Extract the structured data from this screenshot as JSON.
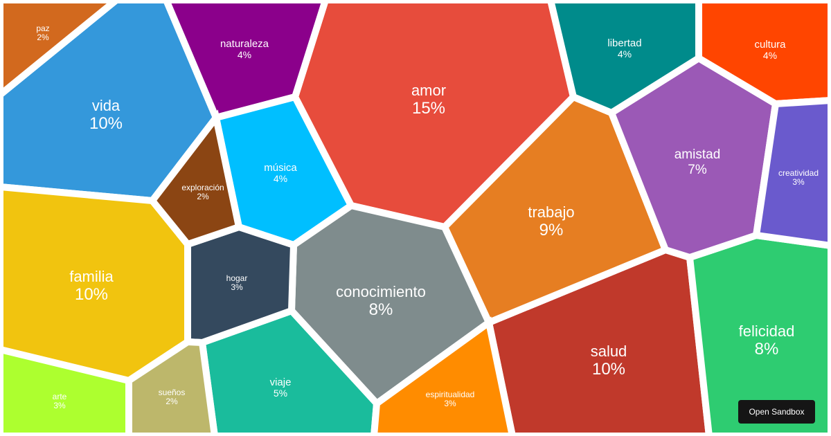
{
  "chart_data": {
    "type": "voronoi-treemap",
    "unit": "%",
    "cells": [
      {
        "label": "amor",
        "value": 15,
        "color": "#e74c3c"
      },
      {
        "label": "vida",
        "value": 10,
        "color": "#3498db"
      },
      {
        "label": "familia",
        "value": 10,
        "color": "#f1c40f"
      },
      {
        "label": "salud",
        "value": 10,
        "color": "#c0392b"
      },
      {
        "label": "trabajo",
        "value": 9,
        "color": "#e67e22"
      },
      {
        "label": "conocimiento",
        "value": 8,
        "color": "#7f8c8d"
      },
      {
        "label": "felicidad",
        "value": 8,
        "color": "#2ecc71"
      },
      {
        "label": "amistad",
        "value": 7,
        "color": "#9b59b6"
      },
      {
        "label": "viaje",
        "value": 5,
        "color": "#1abc9c"
      },
      {
        "label": "naturaleza",
        "value": 4,
        "color": "#8b008b"
      },
      {
        "label": "libertad",
        "value": 4,
        "color": "#008b8b"
      },
      {
        "label": "cultura",
        "value": 4,
        "color": "#ff4500"
      },
      {
        "label": "música",
        "value": 4,
        "color": "#00bfff"
      },
      {
        "label": "creatividad",
        "value": 3,
        "color": "#6a5acd"
      },
      {
        "label": "hogar",
        "value": 3,
        "color": "#34495e"
      },
      {
        "label": "arte",
        "value": 3,
        "color": "#adff2f"
      },
      {
        "label": "espiritualidad",
        "value": 3,
        "color": "#ff8c00"
      },
      {
        "label": "paz",
        "value": 2,
        "color": "#d2691e"
      },
      {
        "label": "exploración",
        "value": 2,
        "color": "#8b4513"
      },
      {
        "label": "sueños",
        "value": 2,
        "color": "#bdb76b"
      }
    ]
  },
  "ui": {
    "sandbox_button": "Open Sandbox"
  }
}
